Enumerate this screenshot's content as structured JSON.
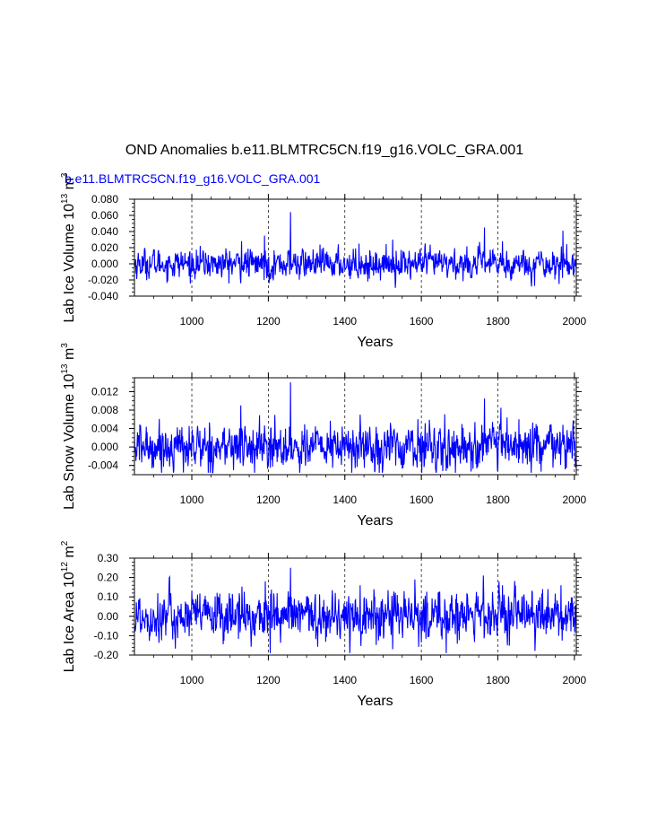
{
  "main_title": "OND Anomalies b.e11.BLMTRC5CN.f19_g16.VOLC_GRA.001",
  "subtitle": "b.e11.BLMTRC5CN.f19_g16.VOLC_GRA.001",
  "colors": {
    "series": "#0000ff",
    "axis": "#000000",
    "grid": "#000000",
    "subtitle": "#0000ff"
  },
  "chart_data": [
    {
      "type": "line",
      "series_name": "Lab Ice Volume",
      "ylabel": {
        "prefix": "Lab Ice Volume 10",
        "exp": "13",
        "unit": " m",
        "unit_exp": "3"
      },
      "xlabel": "Years",
      "xlim": [
        850,
        2005
      ],
      "ylim": [
        -0.04,
        0.08
      ],
      "xticks": [
        1000,
        1200,
        1400,
        1600,
        1800,
        2000
      ],
      "xtick_labels": [
        "1000",
        "1200",
        "1400",
        "1600",
        "1800",
        "2000"
      ],
      "yticks": [
        -0.04,
        -0.02,
        0.0,
        0.02,
        0.04,
        0.06,
        0.08
      ],
      "ytick_labels": [
        "-0.040",
        "-0.020",
        "0.000",
        "0.020",
        "0.040",
        "0.060",
        "0.080"
      ],
      "ygrid_minor_step": 0.005,
      "vgrid": [
        1000,
        1200,
        1400,
        1600,
        1800,
        2000
      ],
      "anomaly_std": 0.0085,
      "peaks": [
        [
          1130,
          0.028
        ],
        [
          1190,
          0.035
        ],
        [
          1258,
          0.064
        ],
        [
          1437,
          0.025
        ],
        [
          1525,
          0.03
        ],
        [
          1765,
          0.045
        ],
        [
          1812,
          0.028
        ],
        [
          1970,
          0.041
        ]
      ],
      "troughs": [
        [
          1202,
          -0.024
        ],
        [
          1460,
          -0.022
        ],
        [
          1960,
          -0.025
        ]
      ]
    },
    {
      "type": "line",
      "series_name": "Lab Snow Volume",
      "ylabel": {
        "prefix": "Lab Snow Volume 10",
        "exp": "13",
        "unit": " m",
        "unit_exp": "3"
      },
      "xlabel": "Years",
      "xlim": [
        850,
        2005
      ],
      "ylim": [
        -0.006,
        0.015
      ],
      "xticks": [
        1000,
        1200,
        1400,
        1600,
        1800,
        2000
      ],
      "xtick_labels": [
        "1000",
        "1200",
        "1400",
        "1600",
        "1800",
        "2000"
      ],
      "yticks": [
        -0.004,
        0.0,
        0.004,
        0.008,
        0.012
      ],
      "ytick_labels": [
        "-0.004",
        "0.000",
        "0.004",
        "0.008",
        "0.012"
      ],
      "ygrid_minor_step": 0.001,
      "vgrid": [
        1000,
        1200,
        1400,
        1600,
        1800,
        2000
      ],
      "anomaly_std": 0.0023,
      "peaks": [
        [
          1128,
          0.009
        ],
        [
          1258,
          0.014
        ],
        [
          1440,
          0.007
        ],
        [
          1765,
          0.0105
        ],
        [
          1808,
          0.0085
        ],
        [
          1855,
          0.006
        ]
      ],
      "troughs": [
        [
          1205,
          -0.0045
        ],
        [
          1418,
          -0.0058
        ],
        [
          1665,
          -0.0052
        ]
      ]
    },
    {
      "type": "line",
      "series_name": "Lab Ice Area",
      "ylabel": {
        "prefix": "Lab Ice Area 10",
        "exp": "12",
        "unit": " m",
        "unit_exp": "2"
      },
      "xlabel": "Years",
      "xlim": [
        850,
        2005
      ],
      "ylim": [
        -0.2,
        0.3
      ],
      "xticks": [
        1000,
        1200,
        1400,
        1600,
        1800,
        2000
      ],
      "xtick_labels": [
        "1000",
        "1200",
        "1400",
        "1600",
        "1800",
        "2000"
      ],
      "yticks": [
        -0.2,
        -0.1,
        0.0,
        0.1,
        0.2,
        0.3
      ],
      "ytick_labels": [
        "-0.20",
        "-0.10",
        "0.00",
        "0.10",
        "0.20",
        "0.30"
      ],
      "ygrid_minor_step": 0.02,
      "vgrid": [
        1000,
        1200,
        1400,
        1600,
        1800,
        2000
      ],
      "anomaly_std": 0.06,
      "peaks": [
        [
          1192,
          0.18
        ],
        [
          1258,
          0.25
        ],
        [
          1440,
          0.16
        ],
        [
          1762,
          0.21
        ],
        [
          1812,
          0.16
        ],
        [
          1965,
          0.16
        ]
      ],
      "troughs": [
        [
          1205,
          -0.2
        ],
        [
          1525,
          -0.17
        ],
        [
          1665,
          -0.19
        ]
      ]
    }
  ]
}
